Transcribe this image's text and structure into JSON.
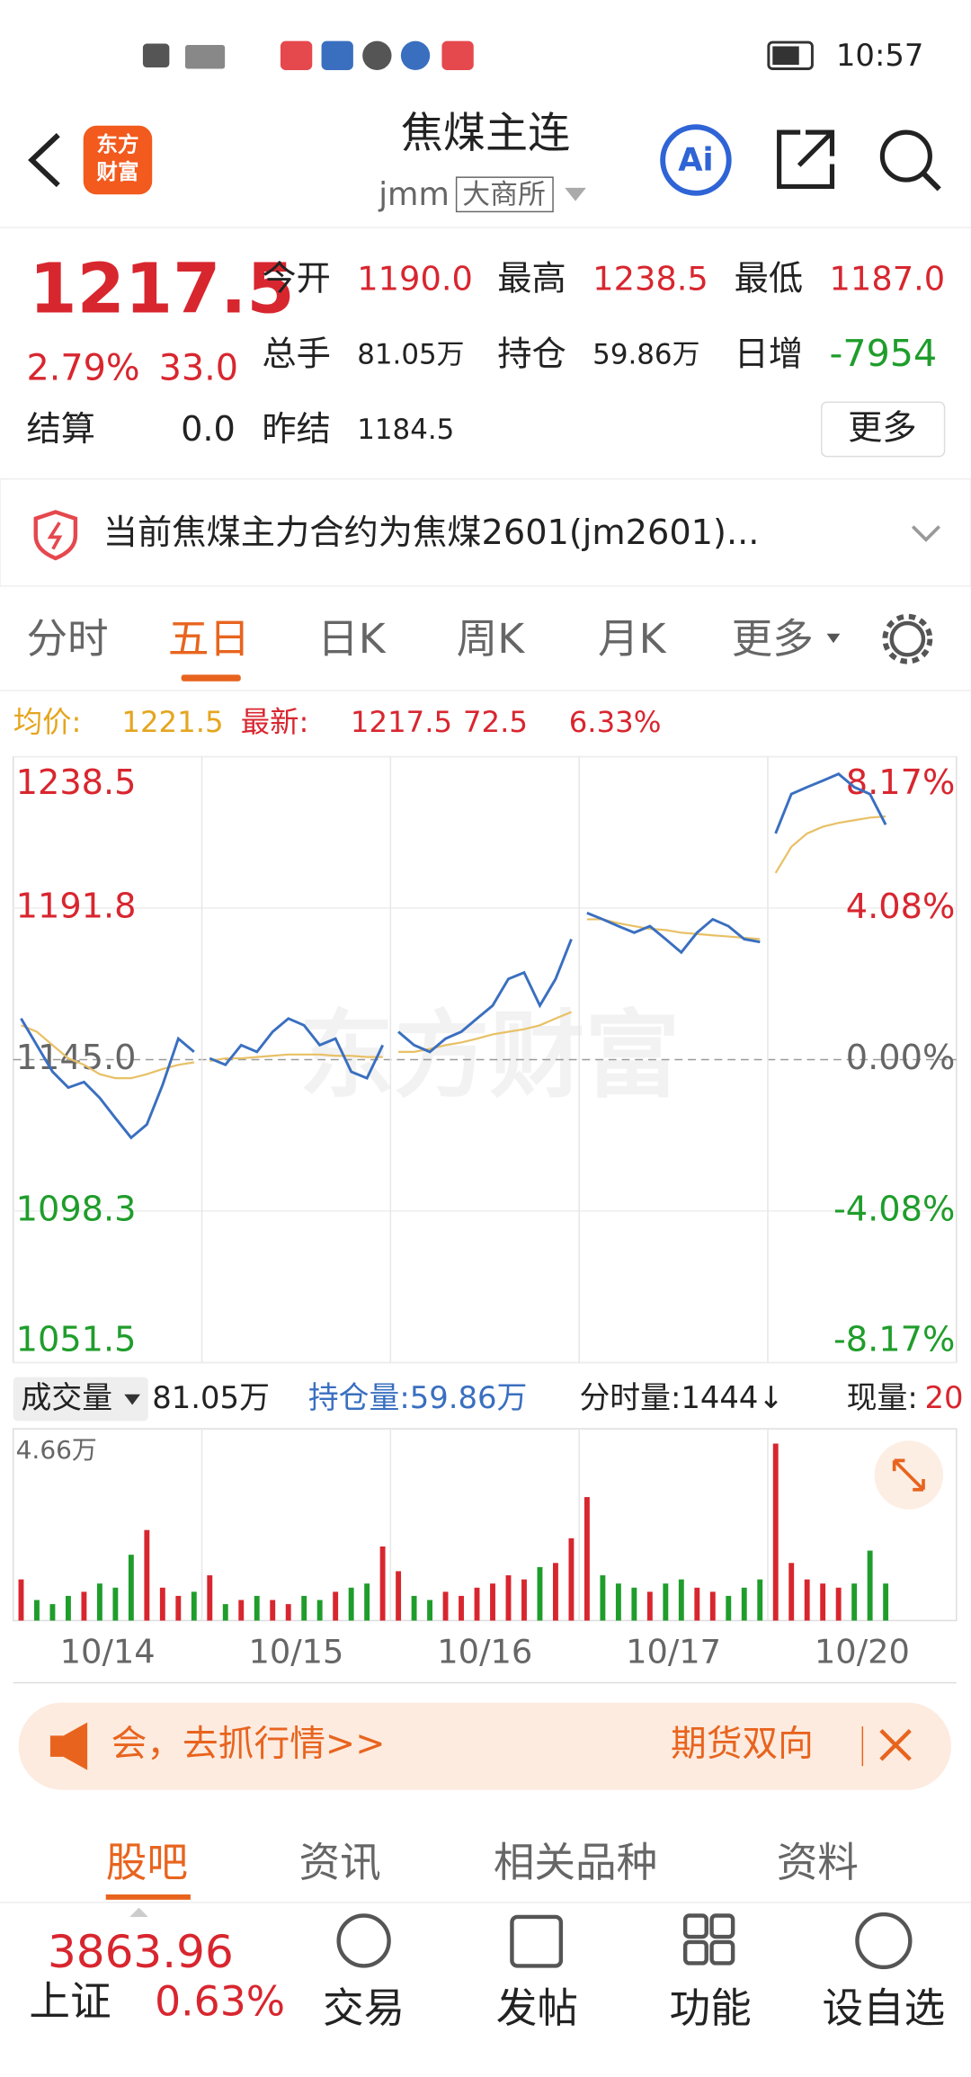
{
  "status": {
    "time": "10:57"
  },
  "header": {
    "logo": [
      "东方",
      "财富"
    ],
    "title": "焦煤主连",
    "code": "jmm",
    "exchange": "大商所"
  },
  "quote": {
    "price": "1217.5",
    "pct": "2.79%",
    "change": "33.0",
    "fields": [
      {
        "label": "今开",
        "value": "1190.0"
      },
      {
        "label": "最高",
        "value": "1238.5"
      },
      {
        "label": "最低",
        "value": "1187.0"
      },
      {
        "label": "总手",
        "value": "81.05万"
      },
      {
        "label": "持仓",
        "value": "59.86万"
      },
      {
        "label": "日增",
        "value": "-7954"
      },
      {
        "label": "结算",
        "value": "0.0"
      },
      {
        "label": "昨结",
        "value": "1184.5"
      }
    ],
    "more": "更多"
  },
  "notice": "当前焦煤主力合约为焦煤2601(jm2601)...",
  "tabs": [
    "分时",
    "五日",
    "日K",
    "周K",
    "月K",
    "更多"
  ],
  "info": {
    "avg_label": "均价:",
    "avg": "1221.5",
    "latest_label": "最新:",
    "latest": "1217.5",
    "change": "72.5",
    "pct": "6.33%"
  },
  "chart": {
    "watermark": "东方财富",
    "ylim": [
      1051.5,
      1238.5
    ],
    "yticks": [
      1238.5,
      1191.8,
      {
        "value": 1145,
        "label": "1145.0"
      },
      1098.3,
      1051.5
    ],
    "y2lim": [
      -8.17,
      8.17
    ],
    "y2ticks": [
      {
        "value": 8.17,
        "label": "8.17%"
      },
      {
        "value": 4.08,
        "label": "4.08%"
      },
      {
        "value": 0,
        "label": "0.00%"
      },
      {
        "value": -4.08,
        "label": "-4.08%"
      },
      {
        "value": -8.17,
        "label": "-8.17%"
      }
    ],
    "volume_header": {
      "selector": "成交量",
      "volume": "81.05万",
      "oi": "持仓量:59.86万",
      "minute": "分时量:1444↓",
      "current_label": "现量:",
      "current": "20"
    },
    "volume_ylim": [
      0,
      {
        "value": 4.66,
        "label": "4.66万"
      }
    ],
    "days": [
      {
        "label": "10/14",
        "price": [
          1157.7,
          1149.5,
          1141.3,
          1136.4,
          1138.1,
          1133.2,
          1127.0,
          1120.9,
          1125.0,
          1137.2,
          1151.5,
          1147.4
        ],
        "avg": [
          1155.6,
          1153.6,
          1149.5,
          1145.4,
          1143.4,
          1140.5,
          1139.3,
          1139.3,
          1140.5,
          1142.1,
          1143.4,
          1144.2
        ],
        "volume": [
          1.0,
          0.5,
          0.4,
          0.6,
          0.7,
          0.9,
          0.8,
          1.6,
          2.2,
          0.8,
          0.6,
          0.7
        ]
      },
      {
        "label": "10/15",
        "price": [
          1145.4,
          1143.4,
          1149.5,
          1147.4,
          1153.6,
          1157.7,
          1155.6,
          1149.5,
          1151.5,
          1141.3,
          1139.3,
          1149.5
        ],
        "avg": [
          1144.6,
          1145.4,
          1145.4,
          1145.8,
          1146.2,
          1146.6,
          1146.6,
          1146.6,
          1146.2,
          1146.2,
          1145.8,
          1145.8
        ],
        "volume": [
          1.1,
          0.4,
          0.5,
          0.6,
          0.5,
          0.4,
          0.6,
          0.5,
          0.7,
          0.8,
          0.9,
          1.8
        ]
      },
      {
        "label": "10/16",
        "price": [
          1153.6,
          1149.5,
          1147.4,
          1151.5,
          1153.6,
          1157.7,
          1161.7,
          1169.9,
          1171.9,
          1161.7,
          1169.9,
          1182.2
        ],
        "avg": [
          1147.4,
          1147.4,
          1148.3,
          1149.5,
          1150.3,
          1151.5,
          1152.8,
          1153.6,
          1154.4,
          1155.6,
          1157.7,
          1159.7
        ],
        "volume": [
          1.2,
          0.6,
          0.5,
          0.7,
          0.6,
          0.8,
          0.9,
          1.1,
          1.0,
          1.3,
          1.4,
          2.0
        ]
      },
      {
        "label": "10/17",
        "price": [
          1190.3,
          1188.3,
          1186.2,
          1184.2,
          1186.2,
          1182.2,
          1178.1,
          1184.2,
          1188.3,
          1186.2,
          1182.2,
          1181.3
        ],
        "avg": [
          1188.3,
          1188.3,
          1187.1,
          1186.2,
          1185.4,
          1185.0,
          1184.2,
          1183.8,
          1183.4,
          1183.0,
          1182.6,
          1182.2
        ],
        "volume": [
          3.0,
          1.1,
          0.9,
          0.8,
          0.7,
          0.9,
          1.0,
          0.8,
          0.7,
          0.6,
          0.8,
          1.0
        ]
      },
      {
        "label": "10/20",
        "price": [
          1214.8,
          1227.0,
          1229.1,
          1231.1,
          1233.2,
          1229.1,
          1227.0,
          1217.5
        ],
        "avg": [
          1202.6,
          1210.7,
          1214.8,
          1216.9,
          1218.1,
          1218.9,
          1219.7,
          1220.1
        ],
        "volume": [
          4.3,
          1.4,
          1.0,
          0.9,
          0.8,
          0.9,
          1.7,
          0.9
        ]
      }
    ]
  },
  "banner": {
    "text": "会，去抓行情>>",
    "right": "期货双向"
  },
  "sub_tabs": [
    "股吧",
    "资讯",
    "相关品种",
    "资料"
  ],
  "bottom": {
    "index_value": "3863.96",
    "index_name": "上证",
    "index_pct": "0.63%",
    "items": [
      "交易",
      "发帖",
      "功能",
      "设自选"
    ]
  }
}
